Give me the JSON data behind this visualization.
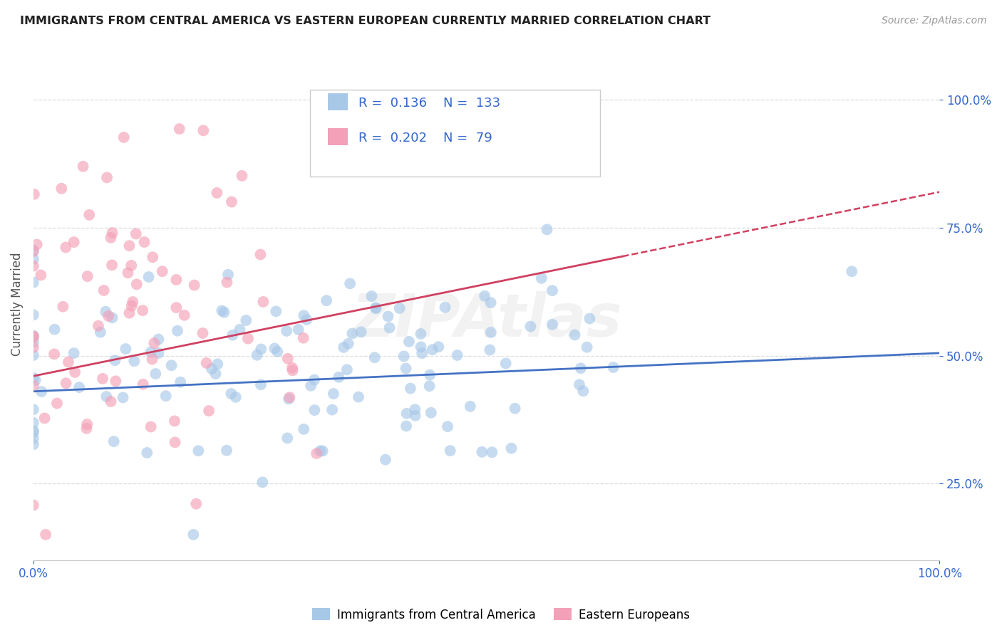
{
  "title": "IMMIGRANTS FROM CENTRAL AMERICA VS EASTERN EUROPEAN CURRENTLY MARRIED CORRELATION CHART",
  "source": "Source: ZipAtlas.com",
  "ylabel": "Currently Married",
  "legend_label1": "Immigrants from Central America",
  "legend_label2": "Eastern Europeans",
  "R1": 0.136,
  "N1": 133,
  "R2": 0.202,
  "N2": 79,
  "color_blue": "#a8c8e8",
  "color_pink": "#f4a0b8",
  "trendline_blue": "#4472c4",
  "trendline_pink": "#d04060",
  "title_color": "#222222",
  "source_color": "#999999",
  "axis_label_color": "#555555",
  "tick_color": "#3366cc",
  "RN_color": "#3366cc",
  "grid_color": "#dddddd",
  "watermark": "ZIPAtlas",
  "xlim": [
    0.0,
    100.0
  ],
  "ylim": [
    10.0,
    110.0
  ],
  "yticks": [
    25.0,
    50.0,
    75.0,
    100.0
  ],
  "blue_x_mean": 28.0,
  "blue_x_std": 20.0,
  "blue_y_mean": 47.0,
  "blue_y_std": 11.0,
  "pink_x_mean": 12.0,
  "pink_x_std": 9.0,
  "pink_y_mean": 58.0,
  "pink_y_std": 16.0,
  "blue_trend_x0": 0.0,
  "blue_trend_y0": 43.0,
  "blue_trend_x1": 100.0,
  "blue_trend_y1": 50.5,
  "pink_trend_x0": 0.0,
  "pink_trend_y0": 46.0,
  "pink_trend_x1": 100.0,
  "pink_trend_y1": 82.0,
  "pink_solid_end": 65.0,
  "seed": 42
}
